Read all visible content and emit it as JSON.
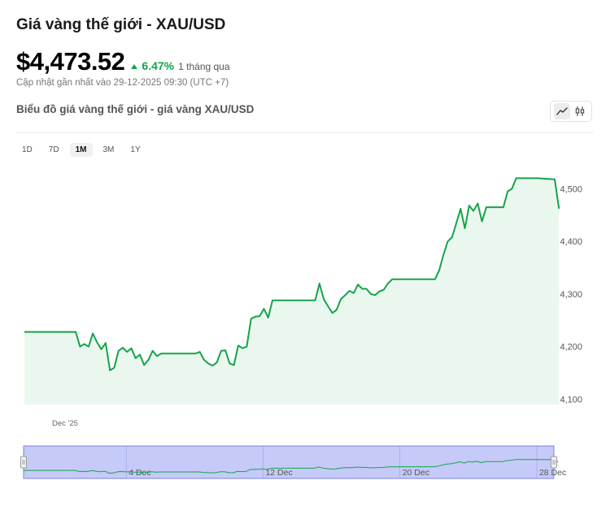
{
  "header": {
    "title": "Giá vàng thế giới - XAU/USD",
    "price": "$4,473.52",
    "change_pct": "6.47%",
    "change_period": "1 tháng qua",
    "updated": "Cập nhật gần nhất vào 29-12-2025 09:30 (UTC +7)"
  },
  "chart_header": {
    "title": "Biểu đồ giá vàng thế giới - giá vàng XAU/USD",
    "chart_types": [
      "line-chart-icon",
      "candlestick-icon"
    ],
    "active_chart_type": "line-chart-icon"
  },
  "ranges": [
    "1D",
    "7D",
    "1M",
    "3M",
    "1Y"
  ],
  "active_range": "1M",
  "colors": {
    "line": "#16a34a",
    "area": "#eaf7ef",
    "navigator_fill": "#c5caf8",
    "navigator_border": "#7a82e0",
    "up": "#16a34a"
  },
  "chart_data": {
    "type": "area",
    "title": "Biểu đồ giá vàng thế giới - giá vàng XAU/USD",
    "x_label_main": "Dec '25",
    "y_ticks": [
      "4,100",
      "4,200",
      "4,300",
      "4,400",
      "4,500"
    ],
    "y_tick_values": [
      4100,
      4200,
      4300,
      4400,
      4500
    ],
    "ylim": [
      4090,
      4550
    ],
    "x_range": [
      "2025-11-28",
      "2025-12-29"
    ],
    "navigator_ticks": [
      "4 Dec",
      "12 Dec",
      "20 Dec",
      "28 Dec"
    ],
    "navigator_tick_dates": [
      "2025-12-04",
      "2025-12-12",
      "2025-12-20",
      "2025-12-28"
    ],
    "grid": false,
    "legend": "none",
    "series": [
      {
        "x": [
          "2025-11-28 00:00",
          "2025-11-29 00:00",
          "2025-11-30 00:00",
          "2025-12-01 00:00",
          "2025-12-01 06:00",
          "2025-12-01 12:00",
          "2025-12-01 18:00",
          "2025-12-02 00:00",
          "2025-12-02 06:00",
          "2025-12-02 12:00",
          "2025-12-02 18:00",
          "2025-12-03 00:00",
          "2025-12-03 06:00",
          "2025-12-03 12:00",
          "2025-12-03 18:00",
          "2025-12-04 00:00",
          "2025-12-04 06:00",
          "2025-12-04 12:00",
          "2025-12-04 18:00",
          "2025-12-05 00:00",
          "2025-12-05 06:00",
          "2025-12-05 12:00",
          "2025-12-05 18:00",
          "2025-12-06 00:00",
          "2025-12-07 00:00",
          "2025-12-08 00:00",
          "2025-12-08 06:00",
          "2025-12-08 12:00",
          "2025-12-08 18:00",
          "2025-12-09 00:00",
          "2025-12-09 06:00",
          "2025-12-09 12:00",
          "2025-12-09 18:00",
          "2025-12-10 00:00",
          "2025-12-10 06:00",
          "2025-12-10 12:00",
          "2025-12-10 18:00",
          "2025-12-11 00:00",
          "2025-12-11 06:00",
          "2025-12-11 12:00",
          "2025-12-11 18:00",
          "2025-12-12 00:00",
          "2025-12-12 06:00",
          "2025-12-12 12:00",
          "2025-12-12 18:00",
          "2025-12-13 00:00",
          "2025-12-14 00:00",
          "2025-12-15 00:00",
          "2025-12-15 06:00",
          "2025-12-15 12:00",
          "2025-12-15 18:00",
          "2025-12-16 00:00",
          "2025-12-16 06:00",
          "2025-12-16 12:00",
          "2025-12-16 18:00",
          "2025-12-17 00:00",
          "2025-12-17 06:00",
          "2025-12-17 12:00",
          "2025-12-17 18:00",
          "2025-12-18 00:00",
          "2025-12-18 06:00",
          "2025-12-18 12:00",
          "2025-12-18 18:00",
          "2025-12-19 00:00",
          "2025-12-19 06:00",
          "2025-12-19 12:00",
          "2025-12-19 18:00",
          "2025-12-20 00:00",
          "2025-12-21 00:00",
          "2025-12-22 00:00",
          "2025-12-22 06:00",
          "2025-12-22 12:00",
          "2025-12-22 18:00",
          "2025-12-23 00:00",
          "2025-12-23 06:00",
          "2025-12-23 12:00",
          "2025-12-23 18:00",
          "2025-12-24 00:00",
          "2025-12-24 06:00",
          "2025-12-24 12:00",
          "2025-12-24 18:00",
          "2025-12-25 00:00",
          "2025-12-26 00:00",
          "2025-12-26 06:00",
          "2025-12-26 12:00",
          "2025-12-26 18:00",
          "2025-12-27 00:00",
          "2025-12-28 00:00",
          "2025-12-29 00:00",
          "2025-12-29 06:00"
        ],
        "y": [
          4228,
          4228,
          4228,
          4228,
          4200,
          4205,
          4200,
          4225,
          4208,
          4195,
          4207,
          4155,
          4160,
          4192,
          4198,
          4190,
          4197,
          4178,
          4185,
          4165,
          4175,
          4192,
          4182,
          4187,
          4187,
          4187,
          4190,
          4175,
          4168,
          4164,
          4170,
          4192,
          4193,
          4168,
          4165,
          4202,
          4197,
          4200,
          4253,
          4257,
          4258,
          4272,
          4255,
          4288,
          4288,
          4288,
          4288,
          4288,
          4320,
          4290,
          4277,
          4264,
          4270,
          4290,
          4298,
          4306,
          4302,
          4318,
          4310,
          4310,
          4300,
          4298,
          4305,
          4308,
          4320,
          4328,
          4328,
          4328,
          4328,
          4328,
          4345,
          4375,
          4400,
          4408,
          4435,
          4462,
          4425,
          4468,
          4458,
          4472,
          4438,
          4465,
          4465,
          4495,
          4500,
          4520,
          4520,
          4520,
          4518,
          4462
        ]
      }
    ]
  },
  "main_series_indices_drawn": "all"
}
